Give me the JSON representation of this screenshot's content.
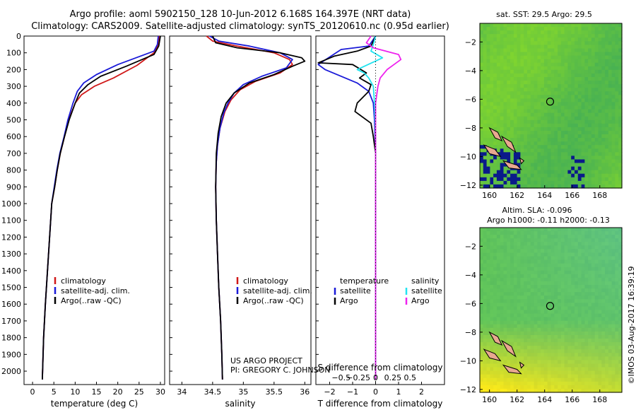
{
  "header": {
    "title_line1": "Argo profile: aoml 5902150_128 10-Jun-2012 6.168S 164.397E (NRT data)",
    "title_line2": "Climatology: CARS2009. Satellite-adjusted climatology: synTS_20120610.nc (0.95d earlier)"
  },
  "colors": {
    "climatology": "#d01818",
    "satellite": "#1a1ad8",
    "argo": "#000000",
    "sal_sat": "#22e4f0",
    "sal_argo": "#ee22ee"
  },
  "chart_data": [
    {
      "type": "line",
      "name": "temperature-profile",
      "xlabel": "temperature (deg C)",
      "xlim": [
        -2,
        31
      ],
      "ylim": [
        2080,
        0
      ],
      "xticks": [
        0,
        5,
        10,
        15,
        20,
        25,
        30
      ],
      "xtick_labels": [
        "0",
        "5",
        "10",
        "15",
        "20",
        "25",
        "30"
      ],
      "yticks": [
        0,
        100,
        200,
        300,
        400,
        500,
        600,
        700,
        800,
        900,
        1000,
        1100,
        1200,
        1300,
        1400,
        1500,
        1600,
        1700,
        1800,
        1900,
        2000
      ],
      "ytick_labels": [
        "0",
        "100",
        "200",
        "300",
        "400",
        "500",
        "600",
        "700",
        "800",
        "900",
        "1000",
        "1100",
        "1200",
        "1300",
        "1400",
        "1500",
        "1600",
        "1700",
        "1800",
        "1900",
        "2000"
      ],
      "legend": [
        "climatology",
        "satellite-adj. clim.",
        "Argo(..raw -QC)"
      ],
      "series": [
        {
          "name": "climatology",
          "color": "#d01818",
          "x": [
            29.7,
            29.5,
            28.5,
            24.5,
            19,
            14.5,
            11.5,
            10,
            8.5,
            7.5,
            6.5,
            5.8,
            5.2,
            4.5,
            4,
            3.5,
            3,
            2.6,
            2.3
          ],
          "y": [
            0,
            50,
            100,
            175,
            250,
            300,
            350,
            400,
            500,
            600,
            700,
            800,
            900,
            1000,
            1200,
            1400,
            1600,
            1800,
            2050
          ]
        },
        {
          "name": "satellite-adj. clim.",
          "color": "#1a1ad8",
          "x": [
            29.5,
            29.3,
            28.5,
            20,
            15,
            12,
            10.5,
            9.5,
            8.3,
            7.4,
            6.4,
            5.7,
            5.1,
            4.5,
            4,
            3.5,
            3,
            2.6,
            2.3
          ],
          "y": [
            0,
            50,
            90,
            170,
            230,
            280,
            330,
            400,
            500,
            600,
            700,
            800,
            900,
            1000,
            1200,
            1400,
            1600,
            1800,
            2050
          ]
        },
        {
          "name": "Argo(..raw -QC)",
          "color": "#000000",
          "x": [
            30,
            29.6,
            28.5,
            22,
            16,
            13,
            11,
            10,
            8.6,
            7.5,
            6.5,
            5.8,
            5.2,
            4.5,
            4,
            3.5,
            3,
            2.6,
            2.3
          ],
          "y": [
            0,
            60,
            110,
            180,
            240,
            290,
            340,
            400,
            500,
            600,
            700,
            800,
            900,
            1000,
            1200,
            1400,
            1600,
            1800,
            2050
          ]
        }
      ]
    },
    {
      "type": "line",
      "name": "salinity-profile",
      "xlabel": "salinity",
      "xlim": [
        33.8,
        36.1
      ],
      "ylim": [
        2080,
        0
      ],
      "xticks": [
        34,
        34.5,
        35,
        35.5,
        36
      ],
      "xtick_labels": [
        "34",
        "34.5",
        "35",
        "35.5",
        "36"
      ],
      "legend": [
        "climatology",
        "satellite-adj. clim.",
        "Argo(..raw -QC)"
      ],
      "annotation_line1": "US ARGO PROJECT",
      "annotation_line2": "PI: GREGORY C. JOHNSON",
      "series": [
        {
          "name": "climatology",
          "color": "#d01818",
          "x": [
            34.4,
            34.5,
            34.9,
            35.5,
            35.75,
            35.8,
            35.6,
            35.2,
            34.95,
            34.8,
            34.7,
            34.62,
            34.58,
            34.56,
            34.55,
            34.56,
            34.58,
            34.6,
            34.63,
            34.65,
            34.66
          ],
          "y": [
            0,
            30,
            60,
            100,
            140,
            170,
            220,
            270,
            320,
            380,
            450,
            550,
            650,
            750,
            900,
            1100,
            1300,
            1500,
            1700,
            1900,
            2050
          ]
        },
        {
          "name": "satellite-adj. clim.",
          "color": "#1a1ad8",
          "x": [
            34.45,
            34.6,
            35.1,
            35.6,
            35.8,
            35.7,
            35.3,
            35.0,
            34.85,
            34.75,
            34.68,
            34.62,
            34.58,
            34.56,
            34.55,
            34.56,
            34.58,
            34.6,
            34.63,
            34.65,
            34.66
          ],
          "y": [
            0,
            30,
            60,
            100,
            140,
            190,
            240,
            290,
            340,
            400,
            460,
            550,
            650,
            750,
            900,
            1100,
            1300,
            1500,
            1700,
            1900,
            2050
          ]
        },
        {
          "name": "Argo(..raw -QC)",
          "color": "#000000",
          "x": [
            34.5,
            34.55,
            34.9,
            35.6,
            35.95,
            36.0,
            35.8,
            35.5,
            35.1,
            34.85,
            34.72,
            34.64,
            34.59,
            34.56,
            34.55,
            34.56,
            34.58,
            34.6,
            34.63,
            34.65,
            34.66
          ],
          "y": [
            0,
            40,
            70,
            100,
            130,
            150,
            180,
            230,
            280,
            340,
            400,
            480,
            580,
            700,
            900,
            1100,
            1300,
            1500,
            1700,
            1900,
            2050
          ]
        }
      ]
    },
    {
      "type": "line",
      "name": "difference-profile",
      "xlabel": "T difference from climatology",
      "xlabel2": "S difference from climatology",
      "xlim": [
        -2.6,
        3.0
      ],
      "ylim": [
        2080,
        0
      ],
      "xticks": [
        -2,
        -1,
        0,
        1,
        2
      ],
      "xtick_labels": [
        "−2",
        "−1",
        "0",
        "1",
        "2"
      ],
      "top_ticks": [
        -1.5,
        -0.75,
        0,
        0.75,
        1.5
      ],
      "top_tick_labels": [
        "−0.5",
        "−0.25",
        "0",
        "0.25",
        "0.5"
      ],
      "legend_temperature": "temperature",
      "legend_salinity": "salinity",
      "legend_items": [
        "satellite",
        "Argo",
        "satellite",
        "Argo"
      ],
      "series": [
        {
          "name": "T satellite",
          "color": "#1a1ad8",
          "x": [
            0,
            -0.3,
            -1.5,
            -2.5,
            -2.2,
            -1.5,
            -0.8,
            -0.3,
            -0.1,
            -0.05,
            0,
            0
          ],
          "y": [
            0,
            60,
            80,
            170,
            200,
            240,
            280,
            330,
            400,
            500,
            700,
            2050
          ]
        },
        {
          "name": "T Argo",
          "color": "#000000",
          "x": [
            0,
            -0.2,
            -0.8,
            -1.8,
            -2.5,
            -1.0,
            -0.4,
            -0.7,
            -0.2,
            -0.3,
            -0.8,
            -0.9,
            -0.2,
            -0.1,
            0,
            0
          ],
          "y": [
            0,
            60,
            90,
            120,
            160,
            170,
            220,
            250,
            290,
            330,
            400,
            450,
            520,
            600,
            700,
            2050
          ]
        },
        {
          "name": "S satellite",
          "color": "#22e4f0",
          "x": [
            0,
            -0.1,
            -0.2,
            0.3,
            -0.8,
            -0.5,
            -0.3,
            -0.1,
            -0.05,
            0,
            0
          ],
          "y": [
            0,
            50,
            90,
            130,
            200,
            220,
            250,
            300,
            400,
            600,
            2050
          ]
        },
        {
          "name": "S Argo",
          "color": "#ee22ee",
          "x": [
            -0.2,
            -0.4,
            -0.1,
            1.0,
            1.1,
            0.8,
            0.5,
            0.2,
            0.1,
            0,
            0
          ],
          "y": [
            0,
            40,
            70,
            110,
            140,
            170,
            200,
            250,
            300,
            400,
            2050
          ]
        }
      ]
    },
    {
      "type": "heatmap",
      "name": "sst-map",
      "title": "sat. SST: 29.5  Argo: 29.5",
      "xlim": [
        159.3,
        169.6
      ],
      "ylim": [
        -12.2,
        -0.7
      ],
      "xticks": [
        160,
        162,
        164,
        166,
        168
      ],
      "xtick_labels": [
        "160",
        "162",
        "164",
        "166",
        "168"
      ],
      "yticks": [
        -2,
        -4,
        -6,
        -8,
        -10,
        -12
      ],
      "ytick_labels": [
        "−2",
        "−4",
        "−6",
        "−8",
        "−10",
        "−12"
      ],
      "marker": {
        "lon": 164.397,
        "lat": -6.168
      }
    },
    {
      "type": "heatmap",
      "name": "sla-map",
      "title_line1": "Altim. SLA: -0.096",
      "title_line2": "Argo h1000: -0.11  h2000: -0.13",
      "xlim": [
        159.3,
        169.6
      ],
      "ylim": [
        -12.2,
        -0.7
      ],
      "xticks": [
        160,
        162,
        164,
        166,
        168
      ],
      "xtick_labels": [
        "160",
        "162",
        "164",
        "166",
        "168"
      ],
      "yticks": [
        -2,
        -4,
        -6,
        -8,
        -10,
        -12
      ],
      "ytick_labels": [
        "−2",
        "−4",
        "−6",
        "−8",
        "−10",
        "−12"
      ],
      "marker": {
        "lon": 164.397,
        "lat": -6.168
      }
    }
  ],
  "footer": {
    "credit": "©IMOS 03-Aug-2017 16:39:19"
  }
}
